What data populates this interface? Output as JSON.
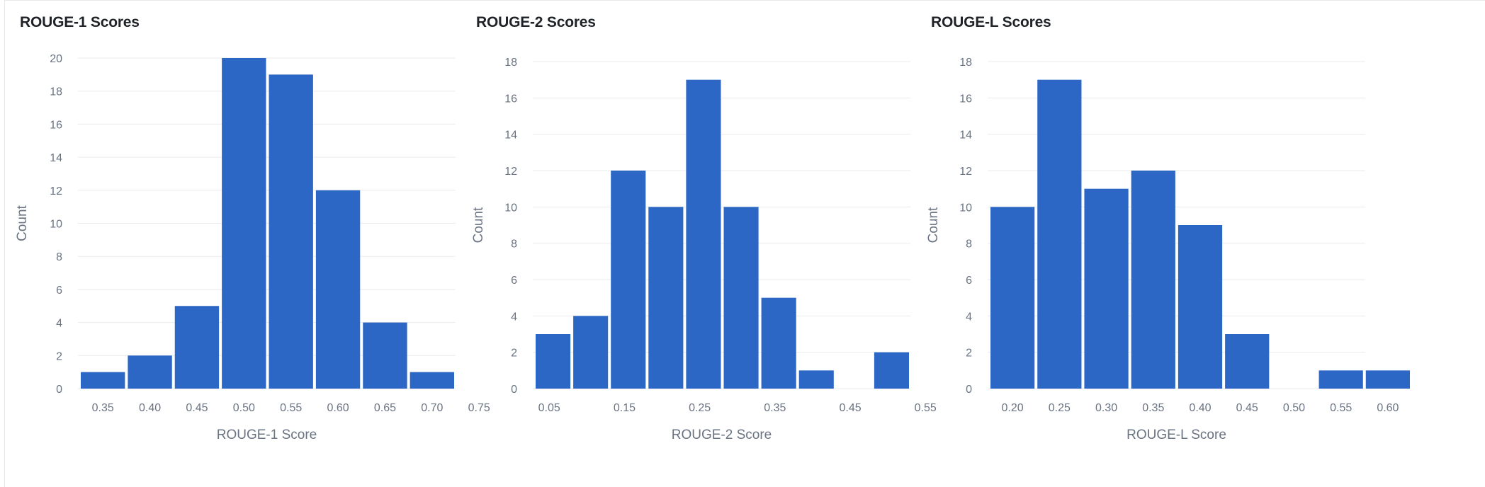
{
  "charts": [
    {
      "title": "ROUGE-1 Scores",
      "xlabel": "ROUGE-1 Score",
      "ylabel": "Count"
    },
    {
      "title": "ROUGE-2 Scores",
      "xlabel": "ROUGE-2 Score",
      "ylabel": "Count"
    },
    {
      "title": "ROUGE-L Scores",
      "xlabel": "ROUGE-L Score",
      "ylabel": "Count"
    }
  ],
  "colors": {
    "bar": "#2c67c6",
    "grid": "#e9ebee",
    "text": "#6a7382",
    "title": "#1f2328"
  },
  "chart_data": [
    {
      "type": "bar",
      "title": "ROUGE-1 Scores",
      "xlabel": "ROUGE-1 Score",
      "ylabel": "Count",
      "x_range": [
        0.325,
        0.725
      ],
      "bin_edges": [
        0.325,
        0.375,
        0.425,
        0.475,
        0.525,
        0.575,
        0.625,
        0.675,
        0.725
      ],
      "values": [
        1,
        2,
        5,
        20,
        19,
        12,
        4,
        1
      ],
      "ylim": [
        0,
        20
      ],
      "yticks": [
        0,
        2,
        4,
        6,
        8,
        10,
        12,
        14,
        16,
        18,
        20
      ],
      "xticks": [
        "0.35",
        "0.40",
        "0.45",
        "0.50",
        "0.55",
        "0.60",
        "0.65",
        "0.70",
        "0.75"
      ],
      "xtick_values": [
        0.35,
        0.4,
        0.45,
        0.5,
        0.55,
        0.6,
        0.65,
        0.7,
        0.75
      ],
      "grid": true
    },
    {
      "type": "bar",
      "title": "ROUGE-2 Scores",
      "xlabel": "ROUGE-2 Score",
      "ylabel": "Count",
      "x_range": [
        0.03,
        0.53
      ],
      "bin_edges": [
        0.03,
        0.08,
        0.13,
        0.18,
        0.23,
        0.28,
        0.33,
        0.38,
        0.43,
        0.48,
        0.53
      ],
      "values": [
        3,
        4,
        12,
        10,
        17,
        10,
        5,
        1,
        0,
        2
      ],
      "ylim": [
        0,
        18
      ],
      "yticks": [
        0,
        2,
        4,
        6,
        8,
        10,
        12,
        14,
        16,
        18
      ],
      "xticks": [
        "0.05",
        "0.15",
        "0.25",
        "0.35",
        "0.45",
        "0.55"
      ],
      "xtick_values": [
        0.05,
        0.15,
        0.25,
        0.35,
        0.45,
        0.55
      ],
      "grid": true
    },
    {
      "type": "bar",
      "title": "ROUGE-L Scores",
      "xlabel": "ROUGE-L Score",
      "ylabel": "Count",
      "x_range": [
        0.175,
        0.625
      ],
      "bin_edges": [
        0.175,
        0.225,
        0.275,
        0.325,
        0.375,
        0.425,
        0.475,
        0.525,
        0.575,
        0.625
      ],
      "values": [
        10,
        17,
        11,
        12,
        9,
        3,
        0,
        1,
        1
      ],
      "ylim": [
        0,
        18
      ],
      "yticks": [
        0,
        2,
        4,
        6,
        8,
        10,
        12,
        14,
        16,
        18
      ],
      "xticks": [
        "0.20",
        "0.25",
        "0.30",
        "0.35",
        "0.40",
        "0.45",
        "0.50",
        "0.55",
        "0.60"
      ],
      "xtick_values": [
        0.2,
        0.25,
        0.3,
        0.35,
        0.4,
        0.45,
        0.5,
        0.55,
        0.6
      ],
      "grid": true
    }
  ]
}
